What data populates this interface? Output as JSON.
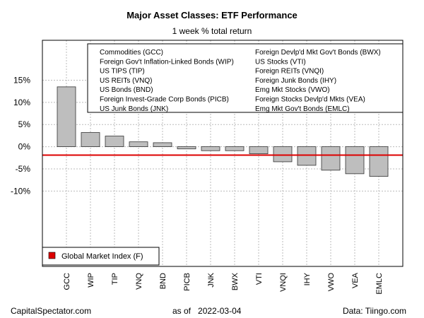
{
  "header": {
    "title": "Major Asset Classes: ETF Performance",
    "subtitle": "1 week % total return"
  },
  "footer": {
    "source_left": "CapitalSpectator.com",
    "as_of_label": "as of",
    "as_of_date": "2022-03-04",
    "data_source": "Data: Tiingo.com"
  },
  "colors": {
    "bar_fill": "#bebebe",
    "bar_stroke": "#333333",
    "grid": "#bbbbbb",
    "reference_line": "#dd0000"
  },
  "chart_data": {
    "type": "bar",
    "title": "Major Asset Classes: ETF Performance",
    "subtitle": "1 week % total return",
    "xlabel": "",
    "ylabel": "",
    "categories": [
      "GCC",
      "WIP",
      "TIP",
      "VNQ",
      "BND",
      "PICB",
      "JNK",
      "BWX",
      "VTI",
      "VNQI",
      "IHY",
      "VWO",
      "VEA",
      "EMLC"
    ],
    "values": [
      13.5,
      3.2,
      2.4,
      1.1,
      0.9,
      -0.5,
      -0.9,
      -0.9,
      -1.6,
      -3.4,
      -4.2,
      -5.3,
      -6.1,
      -6.7
    ],
    "ylim": [
      -27,
      24
    ],
    "yticks": [
      15,
      10,
      5,
      0,
      -5,
      -10
    ],
    "ytick_labels": [
      "15%",
      "10%",
      "5%",
      "0%",
      "-5%",
      "-10%"
    ],
    "grid": true,
    "reference_line": {
      "label": "Global Market Index (F)",
      "value": -1.9
    },
    "legend_top": {
      "placement": "top-right",
      "col1": [
        "Commodities (GCC)",
        "Foreign Gov't Inflation-Linked Bonds (WIP)",
        "US TIPS (TIP)",
        "US REITs (VNQ)",
        "US Bonds (BND)",
        "Foreign Invest-Grade Corp Bonds (PICB)",
        "US Junk Bonds (JNK)"
      ],
      "col2": [
        "Foreign Devlp'd Mkt Gov't Bonds (BWX)",
        "US Stocks (VTI)",
        "Foreign REITs (VNQI)",
        "Foreign Junk Bonds (IHY)",
        "Emg Mkt Stocks (VWO)",
        "Foreign Stocks Devlp'd Mkts (VEA)",
        "Emg Mkt Gov't Bonds (EMLC)"
      ]
    },
    "legend_bottom": {
      "placement": "bottom-left",
      "entries": [
        "Global Market Index (F)"
      ]
    }
  }
}
